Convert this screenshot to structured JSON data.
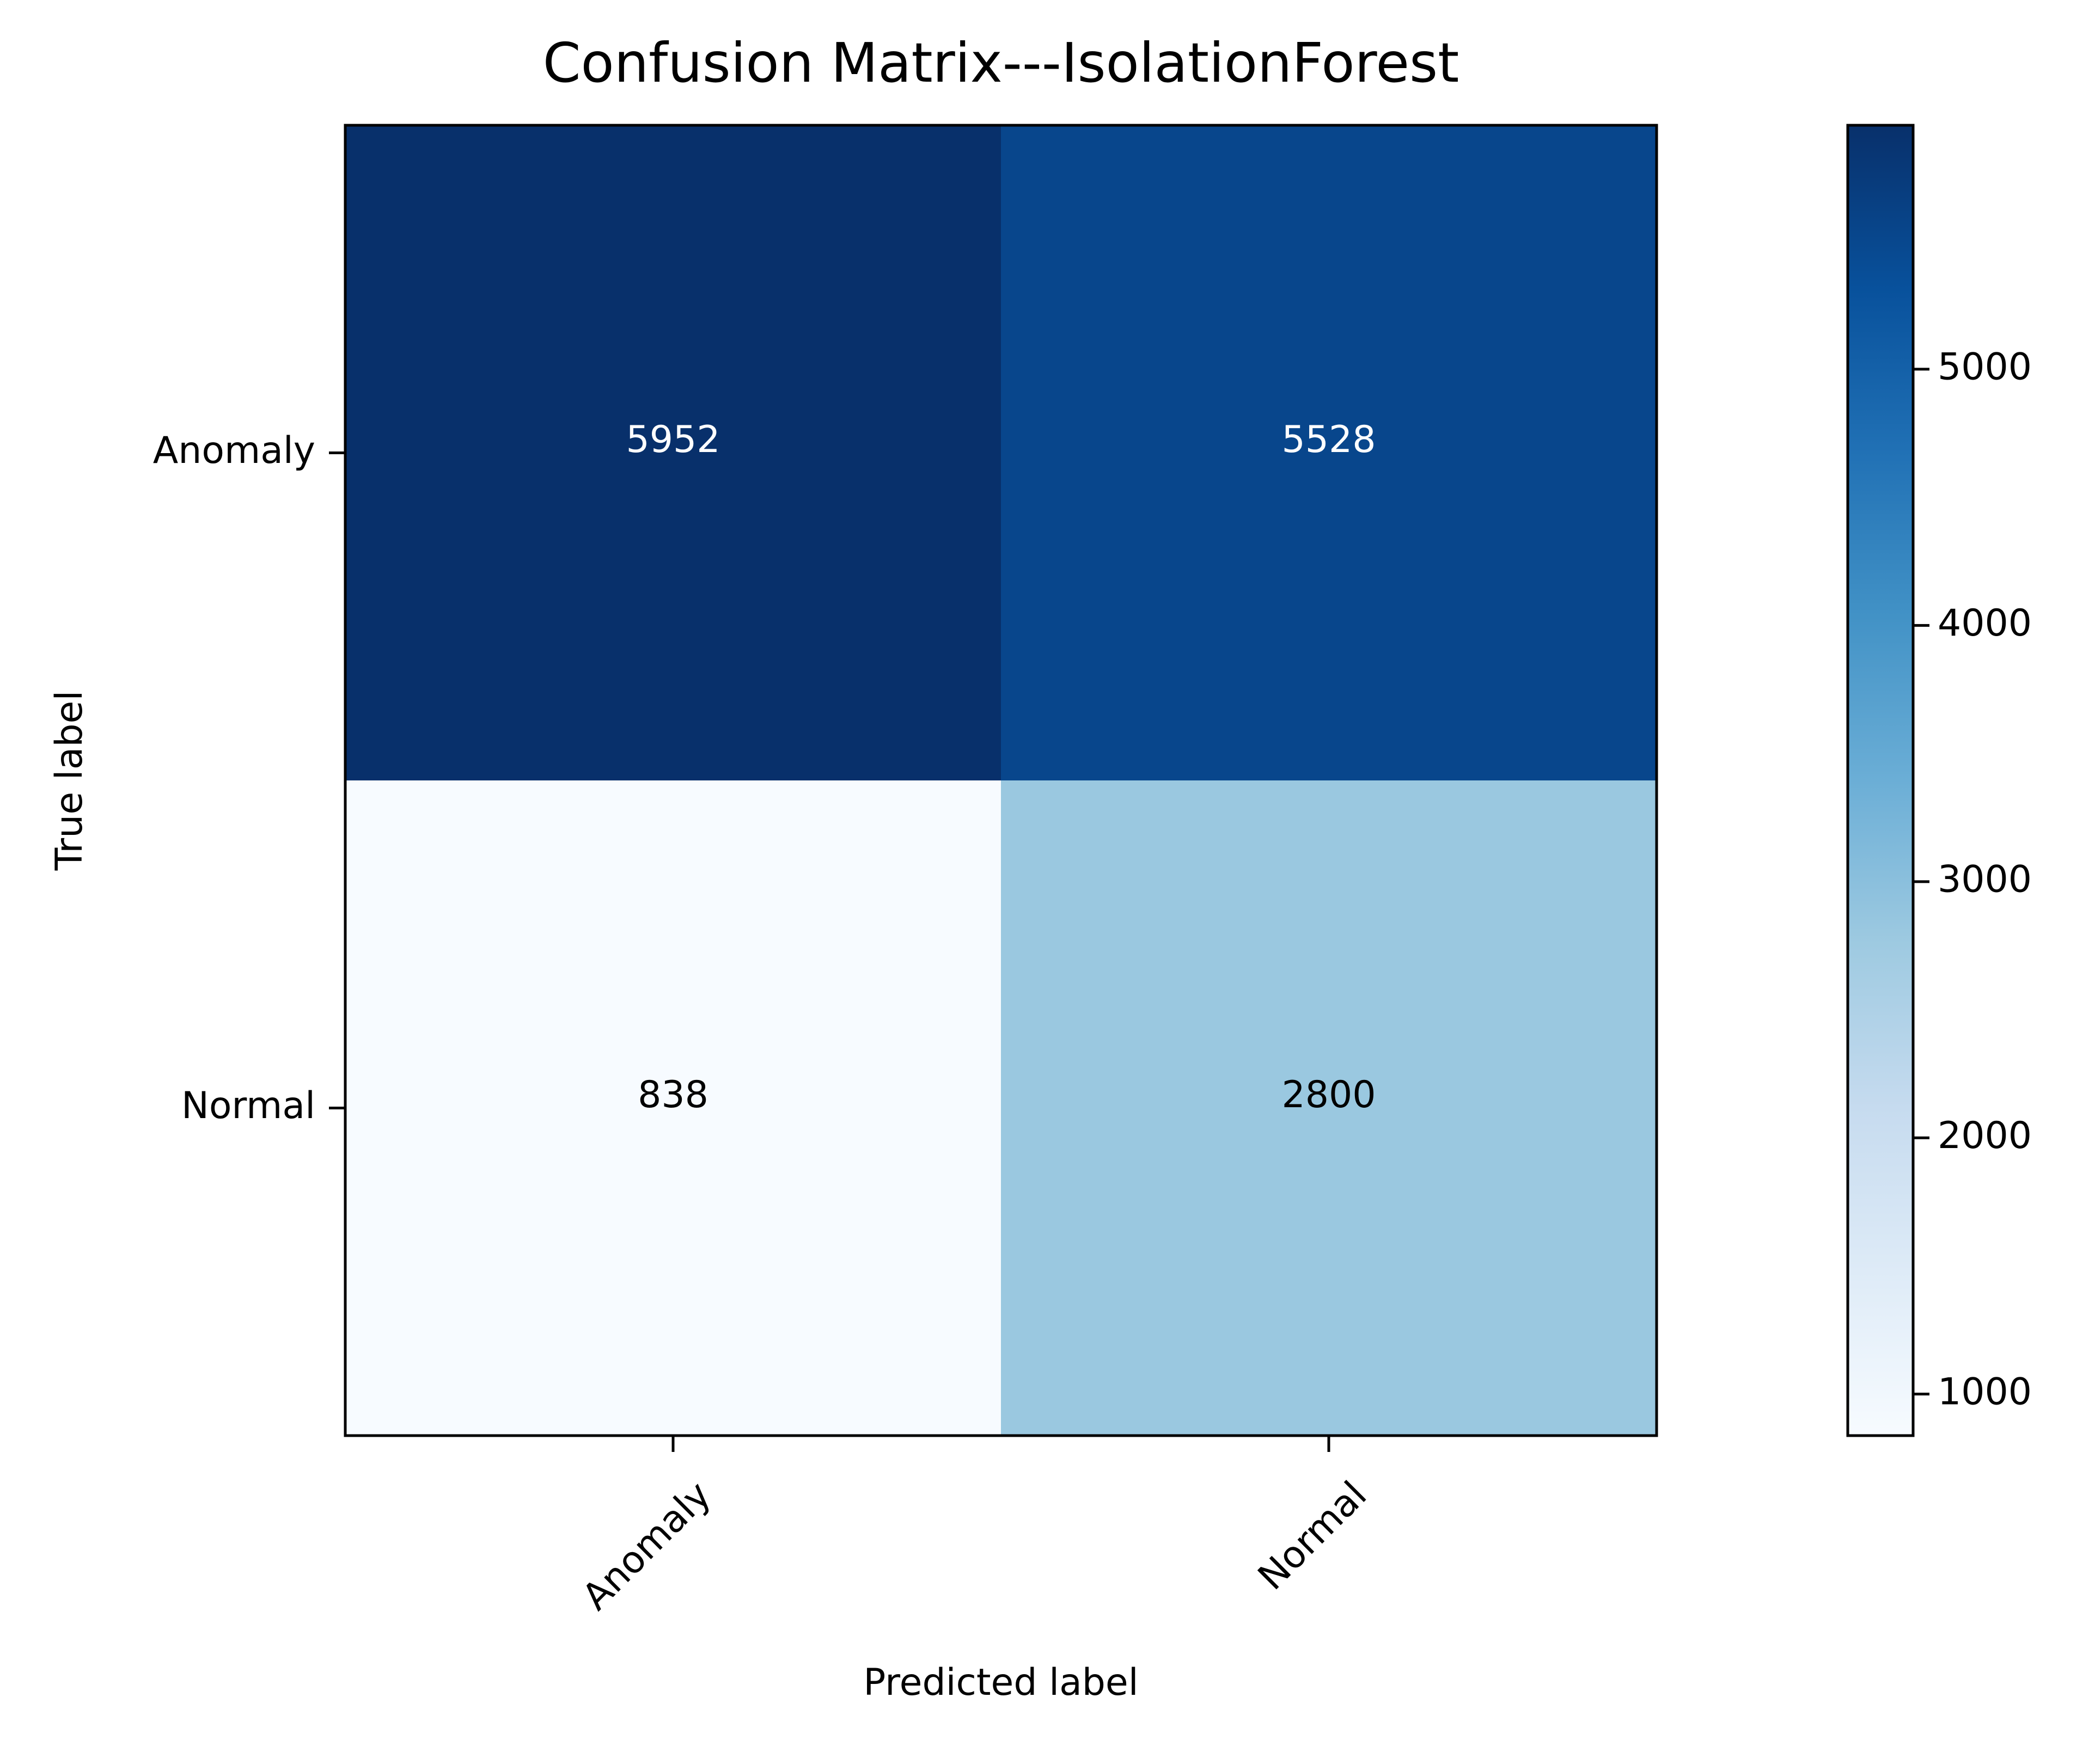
{
  "chart_data": {
    "type": "heatmap",
    "title": "Confusion Matrix---IsolationForest",
    "xlabel": "Predicted label",
    "ylabel": "True label",
    "x_categories": [
      "Anomaly",
      "Normal"
    ],
    "y_categories": [
      "Anomaly",
      "Normal"
    ],
    "matrix": [
      [
        5952,
        5528
      ],
      [
        838,
        2800
      ]
    ],
    "colormap": "Blues",
    "color_range": [
      838,
      5952
    ],
    "colorbar_ticks": [
      1000,
      2000,
      3000,
      4000,
      5000
    ],
    "grid": false,
    "legend": "colorbar-right"
  }
}
